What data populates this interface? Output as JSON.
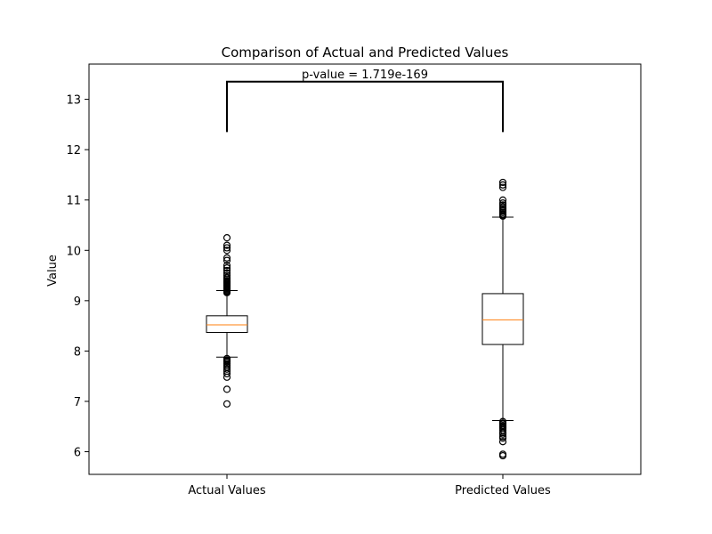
{
  "chart_data": {
    "type": "box",
    "title": "Comparison of Actual and Predicted Values",
    "xlabel": "",
    "ylabel": "Value",
    "ylim": [
      5.55,
      13.7
    ],
    "yticks": [
      6,
      7,
      8,
      9,
      10,
      11,
      12,
      13
    ],
    "categories": [
      "Actual Values",
      "Predicted Values"
    ],
    "series": [
      {
        "category": "Actual Values",
        "whisker_low": 7.88,
        "q1": 8.37,
        "median": 8.52,
        "q3": 8.7,
        "whisker_high": 9.2,
        "outliers_high": [
          9.16,
          9.18,
          9.2,
          9.22,
          9.24,
          9.26,
          9.28,
          9.3,
          9.32,
          9.34,
          9.36,
          9.38,
          9.4,
          9.43,
          9.46,
          9.5,
          9.55,
          9.6,
          9.65,
          9.7,
          9.8,
          9.85,
          10.0,
          10.05,
          10.1,
          10.25
        ],
        "outliers_low": [
          7.85,
          7.82,
          7.8,
          7.78,
          7.75,
          7.72,
          7.68,
          7.64,
          7.6,
          7.55,
          7.48,
          7.24,
          6.95
        ]
      },
      {
        "category": "Predicted Values",
        "whisker_low": 6.62,
        "q1": 8.13,
        "median": 8.62,
        "q3": 9.14,
        "whisker_high": 10.66,
        "outliers_high": [
          10.68,
          10.7,
          10.72,
          10.75,
          10.78,
          10.8,
          10.83,
          10.86,
          10.9,
          10.94,
          11.0,
          11.25,
          11.3,
          11.35
        ],
        "outliers_low": [
          6.6,
          6.57,
          6.55,
          6.52,
          6.5,
          6.47,
          6.43,
          6.38,
          6.35,
          6.3,
          6.27,
          6.2,
          5.95,
          5.92
        ]
      }
    ],
    "annotation": {
      "text": "p-value = 1.719e-169",
      "bracket_top": 13.35,
      "bracket_bottom": 12.35
    },
    "colors": {
      "median": "#ff7f0e",
      "box": "#000000"
    }
  }
}
